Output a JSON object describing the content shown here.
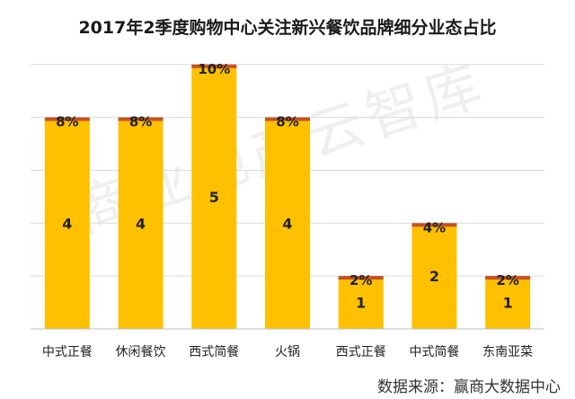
{
  "chart_data": {
    "type": "bar",
    "title": "2017年2季度购物中心关注新兴餐饮品牌细分业态占比",
    "categories": [
      "中式正餐",
      "休闲餐饮",
      "西式简餐",
      "火锅",
      "西式正餐",
      "中式简餐",
      "东南亚菜"
    ],
    "values": [
      4,
      4,
      5,
      4,
      1,
      2,
      1
    ],
    "percent_labels": [
      "8%",
      "8%",
      "10%",
      "8%",
      "2%",
      "4%",
      "2%"
    ],
    "ylim": [
      0,
      5.2
    ],
    "grid": true,
    "legend": "none"
  },
  "watermark": "商业地产云智库",
  "source": "数据来源：赢商大数据中心",
  "colors": {
    "bar": "#FFC000",
    "bar_cap": "#C5502A",
    "grid": "#D9D9D9",
    "axis": "#BFBFBF",
    "text": "#222222"
  }
}
